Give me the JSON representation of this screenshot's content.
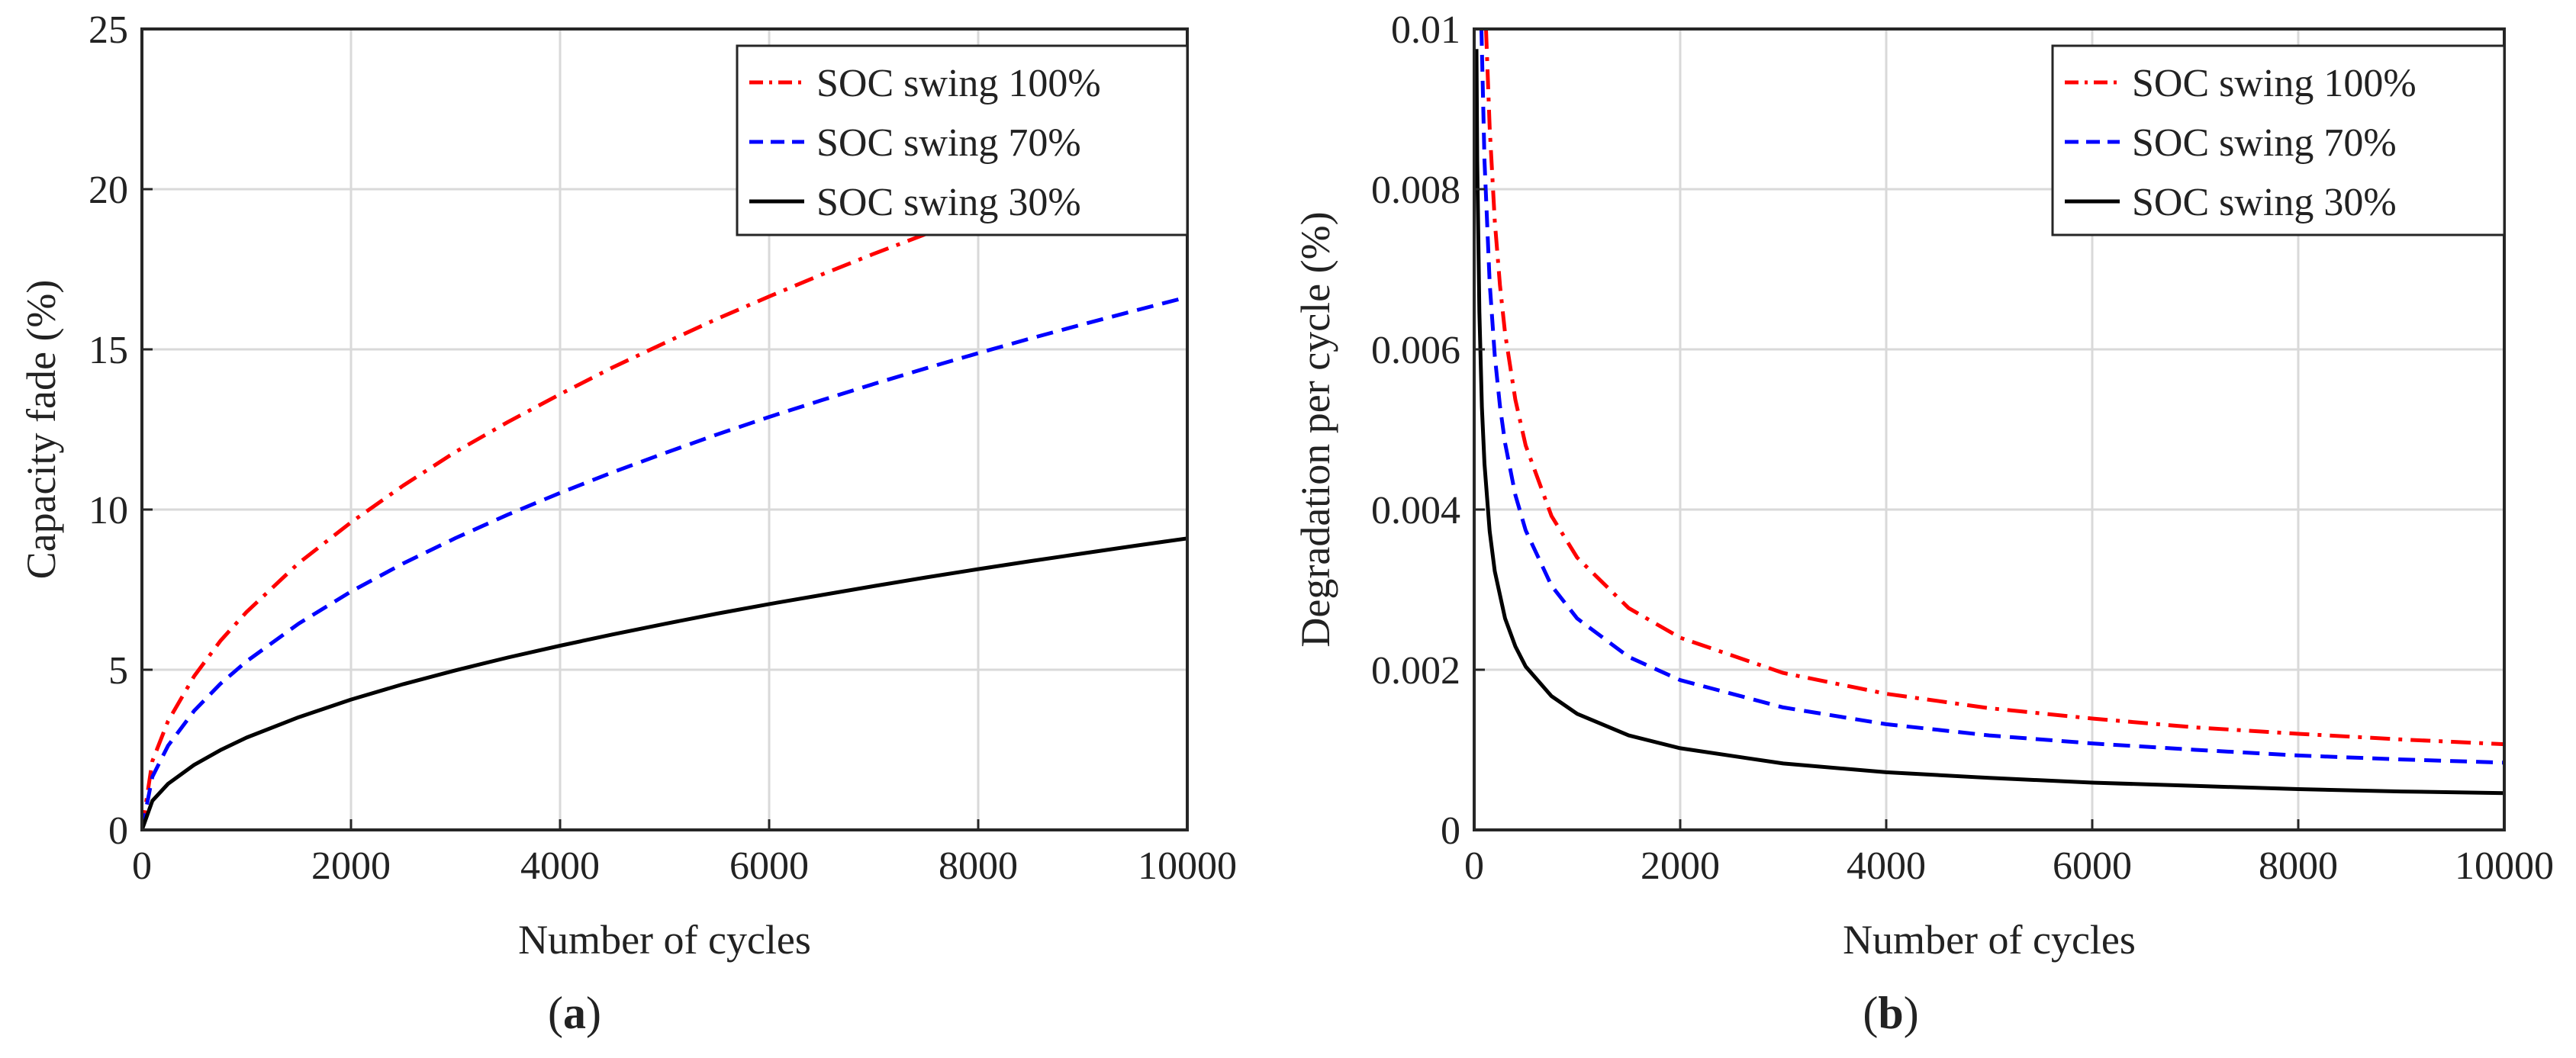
{
  "colors": {
    "red": "#ff0000",
    "blue": "#0000ff",
    "black": "#000000",
    "grid": "#d9d9d9",
    "axis": "#262626"
  },
  "chart_data": [
    {
      "type": "line",
      "caption": "(a)",
      "caption_letter": "a",
      "xlabel": "Number of cycles",
      "ylabel": "Capacity fade (%)",
      "xlim": [
        0,
        10000
      ],
      "ylim": [
        0,
        25
      ],
      "xticks": [
        0,
        2000,
        4000,
        6000,
        8000,
        10000
      ],
      "yticks": [
        0,
        5,
        10,
        15,
        20,
        25
      ],
      "xtick_labels": [
        "0",
        "2000",
        "4000",
        "6000",
        "8000",
        "10000"
      ],
      "ytick_labels": [
        "0",
        "5",
        "10",
        "15",
        "20",
        "25"
      ],
      "grid": true,
      "legend_position": "top-right",
      "series": [
        {
          "name": "SOC swing 100%",
          "color": "#ff0000",
          "style": "dash-dot",
          "x": [
            0,
            100,
            250,
            500,
            750,
            1000,
            1500,
            2000,
            2500,
            3000,
            3500,
            4000,
            4500,
            5000,
            5500,
            6000,
            6500,
            7000,
            7500,
            8000,
            8500,
            9000,
            9500,
            10000
          ],
          "y": [
            0,
            2.15,
            3.4,
            4.8,
            5.9,
            6.8,
            8.33,
            9.6,
            10.75,
            11.8,
            12.73,
            13.6,
            14.43,
            15.2,
            15.95,
            16.65,
            17.33,
            17.98,
            18.6,
            19.2,
            19.8,
            20.37,
            20.93,
            21.5
          ]
        },
        {
          "name": "SOC swing 70%",
          "color": "#0000ff",
          "style": "dashed",
          "x": [
            0,
            100,
            250,
            500,
            750,
            1000,
            1500,
            2000,
            2500,
            3000,
            3500,
            4000,
            4500,
            5000,
            5500,
            6000,
            6500,
            7000,
            7500,
            8000,
            8500,
            9000,
            9500,
            10000
          ],
          "y": [
            0,
            1.66,
            2.63,
            3.72,
            4.56,
            5.26,
            6.44,
            7.44,
            8.32,
            9.11,
            9.84,
            10.52,
            11.16,
            11.76,
            12.34,
            12.89,
            13.41,
            13.92,
            14.41,
            14.88,
            15.34,
            15.78,
            16.21,
            16.63
          ]
        },
        {
          "name": "SOC swing 30%",
          "color": "#000000",
          "style": "solid",
          "x": [
            0,
            100,
            250,
            500,
            750,
            1000,
            1500,
            2000,
            2500,
            3000,
            3500,
            4000,
            4500,
            5000,
            5500,
            6000,
            6500,
            7000,
            7500,
            8000,
            8500,
            9000,
            9500,
            10000
          ],
          "y": [
            0,
            0.91,
            1.44,
            2.03,
            2.49,
            2.88,
            3.52,
            4.07,
            4.55,
            4.98,
            5.38,
            5.75,
            6.1,
            6.43,
            6.75,
            7.05,
            7.33,
            7.61,
            7.88,
            8.14,
            8.39,
            8.63,
            8.87,
            9.1
          ]
        }
      ]
    },
    {
      "type": "line",
      "caption": "(b)",
      "caption_letter": "b",
      "xlabel": "Number of cycles",
      "ylabel": "Degradation per cycle (%)",
      "xlim": [
        0,
        10000
      ],
      "ylim": [
        0,
        0.01
      ],
      "xticks": [
        0,
        2000,
        4000,
        6000,
        8000,
        10000
      ],
      "yticks": [
        0,
        0.002,
        0.004,
        0.006,
        0.008,
        0.01
      ],
      "xtick_labels": [
        "0",
        "2000",
        "4000",
        "6000",
        "8000",
        "10000"
      ],
      "ytick_labels": [
        "0",
        "0.002",
        "0.004",
        "0.006",
        "0.008",
        "0.01"
      ],
      "grid": true,
      "legend_position": "top-right",
      "series": [
        {
          "name": "SOC swing 100%",
          "color": "#ff0000",
          "style": "dash-dot",
          "x": [
            115,
            150,
            200,
            250,
            300,
            400,
            500,
            750,
            1000,
            1500,
            2000,
            3000,
            4000,
            5000,
            6000,
            7000,
            8000,
            9000,
            10000
          ],
          "y": [
            0.01,
            0.00877,
            0.0076,
            0.0068,
            0.0062,
            0.00537,
            0.0048,
            0.00392,
            0.0034,
            0.00277,
            0.0024,
            0.00196,
            0.0017,
            0.00152,
            0.00139,
            0.00128,
            0.0012,
            0.00113,
            0.00107
          ]
        },
        {
          "name": "SOC swing 70%",
          "color": "#0000ff",
          "style": "dashed",
          "x": [
            70,
            100,
            150,
            200,
            250,
            300,
            400,
            500,
            750,
            1000,
            1500,
            2000,
            3000,
            4000,
            5000,
            6000,
            7000,
            8000,
            9000,
            10000
          ],
          "y": [
            0.01,
            0.00836,
            0.00683,
            0.00592,
            0.00529,
            0.00483,
            0.00418,
            0.00374,
            0.00305,
            0.00264,
            0.00216,
            0.00187,
            0.00153,
            0.00132,
            0.00118,
            0.00108,
            0.001,
            0.00093,
            0.00088,
            0.00084
          ]
        },
        {
          "name": "SOC swing 30%",
          "color": "#000000",
          "style": "solid",
          "x": [
            22,
            30,
            50,
            75,
            100,
            150,
            200,
            300,
            400,
            500,
            750,
            1000,
            1500,
            2000,
            3000,
            4000,
            5000,
            6000,
            7000,
            8000,
            9000,
            10000
          ],
          "y": [
            0.00975,
            0.00835,
            0.00647,
            0.00528,
            0.00457,
            0.00373,
            0.00323,
            0.00264,
            0.00229,
            0.00204,
            0.00167,
            0.00145,
            0.00118,
            0.00102,
            0.00083,
            0.00072,
            0.00065,
            0.00059,
            0.00055,
            0.00051,
            0.00048,
            0.00046
          ]
        }
      ]
    }
  ]
}
